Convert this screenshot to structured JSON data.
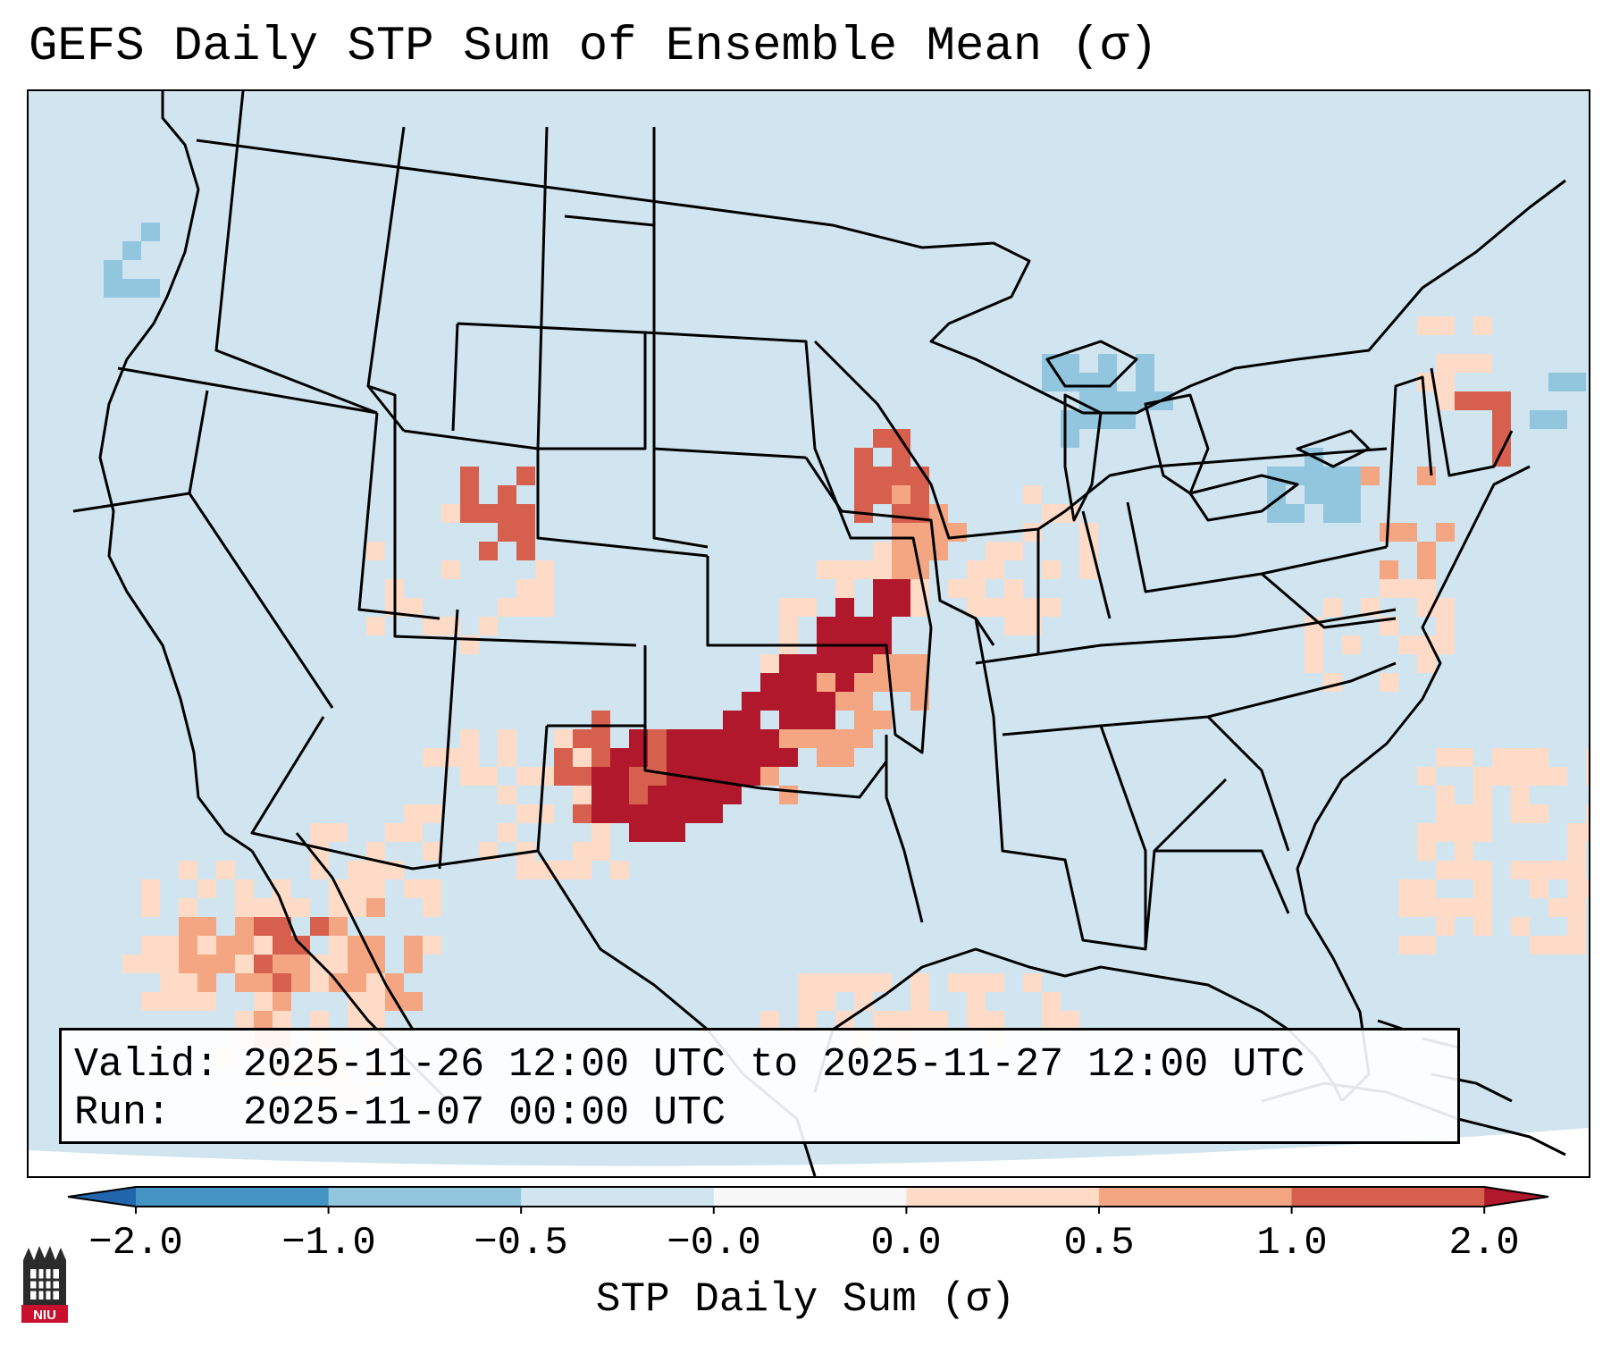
{
  "title": "GEFS Daily STP Sum of Ensemble Mean (σ)",
  "info": {
    "valid_line": "Valid: 2025-11-26 12:00 UTC to 2025-11-27 12:00 UTC",
    "run_line": "Run:   2025-11-07 00:00 UTC"
  },
  "colorbar": {
    "label": "STP Daily Sum (σ)",
    "ticks": [
      "−2.0",
      "−1.0",
      "−0.5",
      "−0.0",
      "0.0",
      "0.5",
      "1.0",
      "2.0"
    ],
    "colors": [
      "#4393c3",
      "#92c5de",
      "#d1e5f0",
      "#f7f7f7",
      "#fddbc7",
      "#f4a582",
      "#d6604d"
    ],
    "extend_low_color": "#2166ac",
    "extend_high_color": "#b2182b"
  },
  "map": {
    "background_color": "#d1e5f0",
    "background_category": "-0.5 to -0.0",
    "projection": "Lambert Conformal, contiguous United States",
    "features": "state and country borders, coastlines, Great Lakes"
  },
  "chart_data": {
    "type": "heatmap",
    "variable": "STP Daily Sum (σ)",
    "regions": [
      {
        "area": "Oklahoma / Texas Panhandle / Kansas / Missouri axis",
        "category": "≥ 2.0"
      },
      {
        "area": "Eastern New Mexico / West Texas",
        "category": "1.0 to 2.0"
      },
      {
        "area": "Iowa / Minnesota / Wisconsin border",
        "category": "1.0 to 2.0"
      },
      {
        "area": "Wyoming / Colorado / Utah scattered",
        "category": "0.5 to 1.0"
      },
      {
        "area": "Northern Mexico / Sonora / Sinaloa",
        "category": "0.0 to 1.0"
      },
      {
        "area": "Southern New England / Mid-Atlantic coast",
        "category": "0.0 to 2.0"
      },
      {
        "area": "Western Gulf of Mexico",
        "category": "0.0 to 0.5"
      },
      {
        "area": "Western Atlantic",
        "category": "0.0 to 1.0"
      },
      {
        "area": "Great Lakes / Lake Ontario",
        "category": "-1.0 to -0.5"
      },
      {
        "area": "Pacific Northwest offshore",
        "category": "-1.0 to -0.5"
      }
    ]
  },
  "logo_text": "NIU"
}
